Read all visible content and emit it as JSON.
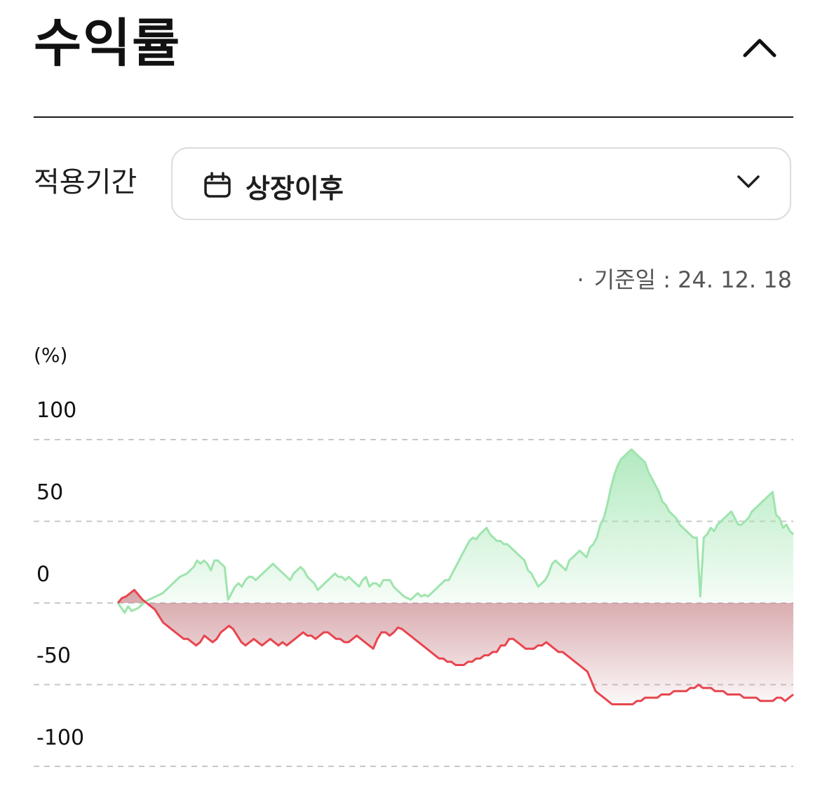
{
  "header": {
    "title": "수익률",
    "collapse_icon": "chevron-up-icon"
  },
  "period": {
    "label": "적용기간",
    "selected": "상장이후",
    "calendar_icon": "calendar-icon",
    "dropdown_icon": "chevron-down-icon"
  },
  "base_date": {
    "bullet": "·",
    "text": "기준일 : 24. 12. 18"
  },
  "chart_data": {
    "type": "area",
    "unit_label": "(%)",
    "y_ticks": [
      "100",
      "50",
      "0",
      "-50",
      "-100"
    ],
    "ylim": [
      -100,
      100
    ],
    "grid": true,
    "colors": {
      "positive": "#9ee4ad",
      "negative": "#e8454e",
      "grid": "#c8c8c8"
    },
    "series": [
      {
        "color": "#9ee4ad",
        "values": [
          0,
          -3,
          -6,
          -2,
          -5,
          -4,
          -3,
          -1,
          1,
          2,
          3,
          4,
          5,
          6,
          8,
          10,
          12,
          14,
          16,
          17,
          18,
          20,
          22,
          26,
          24,
          26,
          24,
          20,
          26,
          26,
          24,
          22,
          2,
          6,
          10,
          12,
          10,
          14,
          16,
          16,
          14,
          16,
          18,
          20,
          22,
          24,
          22,
          20,
          18,
          16,
          14,
          18,
          20,
          22,
          20,
          16,
          14,
          12,
          8,
          10,
          12,
          14,
          16,
          18,
          16,
          16,
          14,
          16,
          14,
          12,
          10,
          14,
          16,
          10,
          12,
          12,
          10,
          14,
          14,
          14,
          10,
          8,
          6,
          4,
          3,
          2,
          4,
          6,
          4,
          5,
          4,
          6,
          8,
          10,
          12,
          14,
          14,
          18,
          22,
          26,
          30,
          34,
          38,
          40,
          39,
          42,
          44,
          46,
          42,
          40,
          38,
          38,
          36,
          36,
          34,
          32,
          30,
          28,
          26,
          20,
          18,
          14,
          10,
          12,
          14,
          18,
          24,
          26,
          24,
          22,
          20,
          26,
          28,
          30,
          32,
          30,
          28,
          34,
          36,
          40,
          48,
          52,
          60,
          70,
          78,
          84,
          88,
          90,
          92,
          94,
          92,
          90,
          88,
          86,
          80,
          76,
          72,
          68,
          62,
          60,
          56,
          54,
          52,
          48,
          46,
          44,
          42,
          40,
          40,
          4,
          40,
          42,
          46,
          44,
          48,
          50,
          52,
          54,
          56,
          52,
          48,
          48,
          50,
          52,
          56,
          58,
          60,
          62,
          64,
          66,
          68,
          54,
          52,
          46,
          48,
          44,
          42
        ]
      },
      {
        "color": "#e8454e",
        "values": [
          0,
          3,
          4,
          6,
          8,
          5,
          2,
          0,
          -2,
          -4,
          -8,
          -12,
          -14,
          -16,
          -18,
          -20,
          -22,
          -22,
          -24,
          -26,
          -24,
          -20,
          -22,
          -24,
          -22,
          -18,
          -16,
          -14,
          -16,
          -20,
          -24,
          -26,
          -24,
          -22,
          -24,
          -26,
          -24,
          -22,
          -24,
          -26,
          -24,
          -26,
          -24,
          -22,
          -20,
          -18,
          -20,
          -20,
          -22,
          -20,
          -18,
          -18,
          -20,
          -22,
          -22,
          -24,
          -24,
          -22,
          -20,
          -22,
          -24,
          -26,
          -28,
          -22,
          -18,
          -18,
          -20,
          -18,
          -15,
          -16,
          -18,
          -20,
          -22,
          -24,
          -26,
          -28,
          -30,
          -32,
          -34,
          -34,
          -36,
          -36,
          -38,
          -38,
          -38,
          -36,
          -36,
          -34,
          -34,
          -32,
          -32,
          -30,
          -30,
          -26,
          -26,
          -22,
          -22,
          -24,
          -26,
          -28,
          -28,
          -28,
          -26,
          -26,
          -24,
          -26,
          -28,
          -30,
          -30,
          -32,
          -34,
          -36,
          -38,
          -40,
          -42,
          -48,
          -54,
          -56,
          -58,
          -60,
          -62,
          -62,
          -62,
          -62,
          -62,
          -62,
          -60,
          -60,
          -58,
          -58,
          -58,
          -58,
          -56,
          -56,
          -56,
          -54,
          -54,
          -54,
          -54,
          -52,
          -52,
          -50,
          -52,
          -52,
          -52,
          -54,
          -54,
          -54,
          -56,
          -56,
          -56,
          -56,
          -58,
          -58,
          -58,
          -58,
          -60,
          -60,
          -60,
          -60,
          -58,
          -58,
          -60,
          -58,
          -56
        ]
      }
    ]
  }
}
